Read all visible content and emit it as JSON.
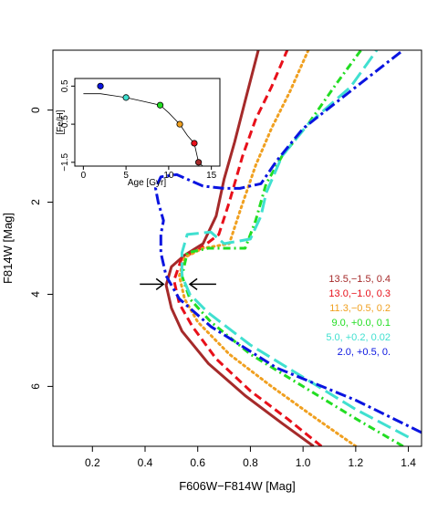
{
  "chart_data": {
    "type": "line",
    "xlabel": "F606W−F814W [Mag]",
    "ylabel": "F814W [Mag]",
    "xlim": [
      0.05,
      1.45
    ],
    "ylim": [
      7.3,
      -1.3
    ],
    "y_inverted": true,
    "xticks": [
      0.2,
      0.4,
      0.6,
      0.8,
      1.0,
      1.2,
      1.4
    ],
    "xtick_labels": [
      "0.2",
      "0.4",
      "0.6",
      "0.8",
      "1.0",
      "1.2",
      "1.4"
    ],
    "yticks": [
      0,
      2,
      4,
      6
    ],
    "ytick_labels": [
      "0",
      "2",
      "4",
      "6"
    ],
    "grid": false,
    "legend_placement": "right",
    "annotations": [
      {
        "type": "arrow",
        "direction": "right",
        "from": [
          0.38,
          3.78
        ],
        "to": [
          0.47,
          3.78
        ]
      },
      {
        "type": "arrow",
        "direction": "left",
        "from": [
          0.67,
          3.78
        ],
        "to": [
          0.57,
          3.78
        ]
      }
    ],
    "series": [
      {
        "name": "13.5,−1.5, 0.4",
        "color": "#a52a2a",
        "dash": "solid",
        "points": [
          [
            1.04,
            7.3
          ],
          [
            0.92,
            6.8
          ],
          [
            0.78,
            6.2
          ],
          [
            0.64,
            5.5
          ],
          [
            0.54,
            4.8
          ],
          [
            0.5,
            4.3
          ],
          [
            0.48,
            3.8
          ],
          [
            0.5,
            3.4
          ],
          [
            0.55,
            3.15
          ],
          [
            0.62,
            2.9
          ],
          [
            0.67,
            2.3
          ],
          [
            0.7,
            1.5
          ],
          [
            0.74,
            0.7
          ],
          [
            0.78,
            -0.2
          ],
          [
            0.83,
            -1.3
          ]
        ]
      },
      {
        "name": "13.0,−1.0, 0.3",
        "color": "#e8101a",
        "dash": "dashed",
        "points": [
          [
            1.07,
            7.3
          ],
          [
            0.94,
            6.7
          ],
          [
            0.8,
            6.1
          ],
          [
            0.67,
            5.4
          ],
          [
            0.58,
            4.7
          ],
          [
            0.53,
            4.2
          ],
          [
            0.51,
            3.7
          ],
          [
            0.54,
            3.2
          ],
          [
            0.6,
            3.05
          ],
          [
            0.68,
            2.7
          ],
          [
            0.72,
            2.0
          ],
          [
            0.77,
            1.0
          ],
          [
            0.82,
            0.2
          ],
          [
            0.88,
            -0.5
          ],
          [
            0.94,
            -1.3
          ]
        ]
      },
      {
        "name": "11.3,−0.5, 0.2",
        "color": "#f0a020",
        "dash": "dotted",
        "points": [
          [
            1.2,
            7.3
          ],
          [
            1.05,
            6.7
          ],
          [
            0.88,
            6.0
          ],
          [
            0.72,
            5.3
          ],
          [
            0.6,
            4.6
          ],
          [
            0.55,
            4.1
          ],
          [
            0.53,
            3.6
          ],
          [
            0.55,
            3.2
          ],
          [
            0.62,
            3.0
          ],
          [
            0.72,
            2.9
          ],
          [
            0.76,
            2.2
          ],
          [
            0.82,
            1.2
          ],
          [
            0.88,
            0.4
          ],
          [
            0.95,
            -0.4
          ],
          [
            1.02,
            -1.3
          ]
        ]
      },
      {
        "name": "9.0, +0.0, 0.1",
        "color": "#22dd22",
        "dash": "dashdot",
        "points": [
          [
            1.38,
            7.3
          ],
          [
            1.2,
            6.7
          ],
          [
            1.0,
            6.0
          ],
          [
            0.8,
            5.3
          ],
          [
            0.65,
            4.6
          ],
          [
            0.57,
            4.1
          ],
          [
            0.54,
            3.6
          ],
          [
            0.56,
            3.1
          ],
          [
            0.64,
            3.0
          ],
          [
            0.78,
            3.0
          ],
          [
            0.82,
            2.4
          ],
          [
            0.86,
            1.6
          ],
          [
            0.92,
            1.0
          ],
          [
            1.02,
            0.3
          ],
          [
            1.13,
            -0.6
          ],
          [
            1.22,
            -1.3
          ]
        ]
      },
      {
        "name": "5.0, +0.2, 0.02",
        "color": "#40e0d0",
        "dash": "longdash",
        "points": [
          [
            1.4,
            7.1
          ],
          [
            1.2,
            6.5
          ],
          [
            1.0,
            5.8
          ],
          [
            0.8,
            5.1
          ],
          [
            0.64,
            4.4
          ],
          [
            0.57,
            4.0
          ],
          [
            0.54,
            3.6
          ],
          [
            0.54,
            3.1
          ],
          [
            0.56,
            2.7
          ],
          [
            0.65,
            2.65
          ],
          [
            0.7,
            2.9
          ],
          [
            0.8,
            2.8
          ],
          [
            0.84,
            2.3
          ],
          [
            0.86,
            1.8
          ],
          [
            0.92,
            1.0
          ],
          [
            1.02,
            0.3
          ],
          [
            1.18,
            -0.5
          ],
          [
            1.28,
            -1.3
          ]
        ]
      },
      {
        "name": "2.0, +0.5, 0.",
        "color": "#0a14e0",
        "dash": "twodash",
        "points": [
          [
            1.45,
            7.0
          ],
          [
            1.2,
            6.3
          ],
          [
            0.9,
            5.6
          ],
          [
            0.65,
            4.7
          ],
          [
            0.53,
            4.1
          ],
          [
            0.48,
            3.6
          ],
          [
            0.46,
            3.1
          ],
          [
            0.46,
            2.7
          ],
          [
            0.47,
            2.4
          ],
          [
            0.45,
            2.0
          ],
          [
            0.44,
            1.7
          ],
          [
            0.46,
            1.45
          ],
          [
            0.52,
            1.4
          ],
          [
            0.62,
            1.65
          ],
          [
            0.7,
            1.7
          ],
          [
            0.76,
            1.7
          ],
          [
            0.84,
            1.6
          ],
          [
            0.9,
            1.1
          ],
          [
            1.0,
            0.4
          ],
          [
            1.2,
            -0.5
          ],
          [
            1.38,
            -1.3
          ]
        ]
      }
    ],
    "inset": {
      "type": "line",
      "xlabel": "Age [Gyr]",
      "ylabel": "[Fe/H]",
      "xlim": [
        -1,
        16
      ],
      "ylim": [
        -1.6,
        0.7
      ],
      "xticks": [
        0,
        5,
        10,
        15
      ],
      "xtick_labels": [
        "0",
        "5",
        "10",
        "15"
      ],
      "yticks": [
        0.5,
        -0.5,
        -1.5
      ],
      "ytick_labels": [
        "0.5",
        "−0.5",
        "−1.5"
      ],
      "curve": [
        [
          0,
          0.3
        ],
        [
          2,
          0.3
        ],
        [
          5,
          0.2
        ],
        [
          7,
          0.1
        ],
        [
          9,
          0.0
        ],
        [
          10,
          -0.2
        ],
        [
          11.3,
          -0.5
        ],
        [
          12.2,
          -0.8
        ],
        [
          13.0,
          -1.0
        ],
        [
          13.5,
          -1.5
        ],
        [
          14,
          -1.6
        ]
      ],
      "points": [
        {
          "x": 2.0,
          "y": 0.5,
          "color": "#0a14e0"
        },
        {
          "x": 5.0,
          "y": 0.2,
          "color": "#40e0d0"
        },
        {
          "x": 9.0,
          "y": 0.0,
          "color": "#22dd22"
        },
        {
          "x": 11.3,
          "y": -0.5,
          "color": "#f0a020"
        },
        {
          "x": 13.0,
          "y": -1.0,
          "color": "#e8101a"
        },
        {
          "x": 13.5,
          "y": -1.5,
          "color": "#a52a2a"
        }
      ]
    }
  }
}
